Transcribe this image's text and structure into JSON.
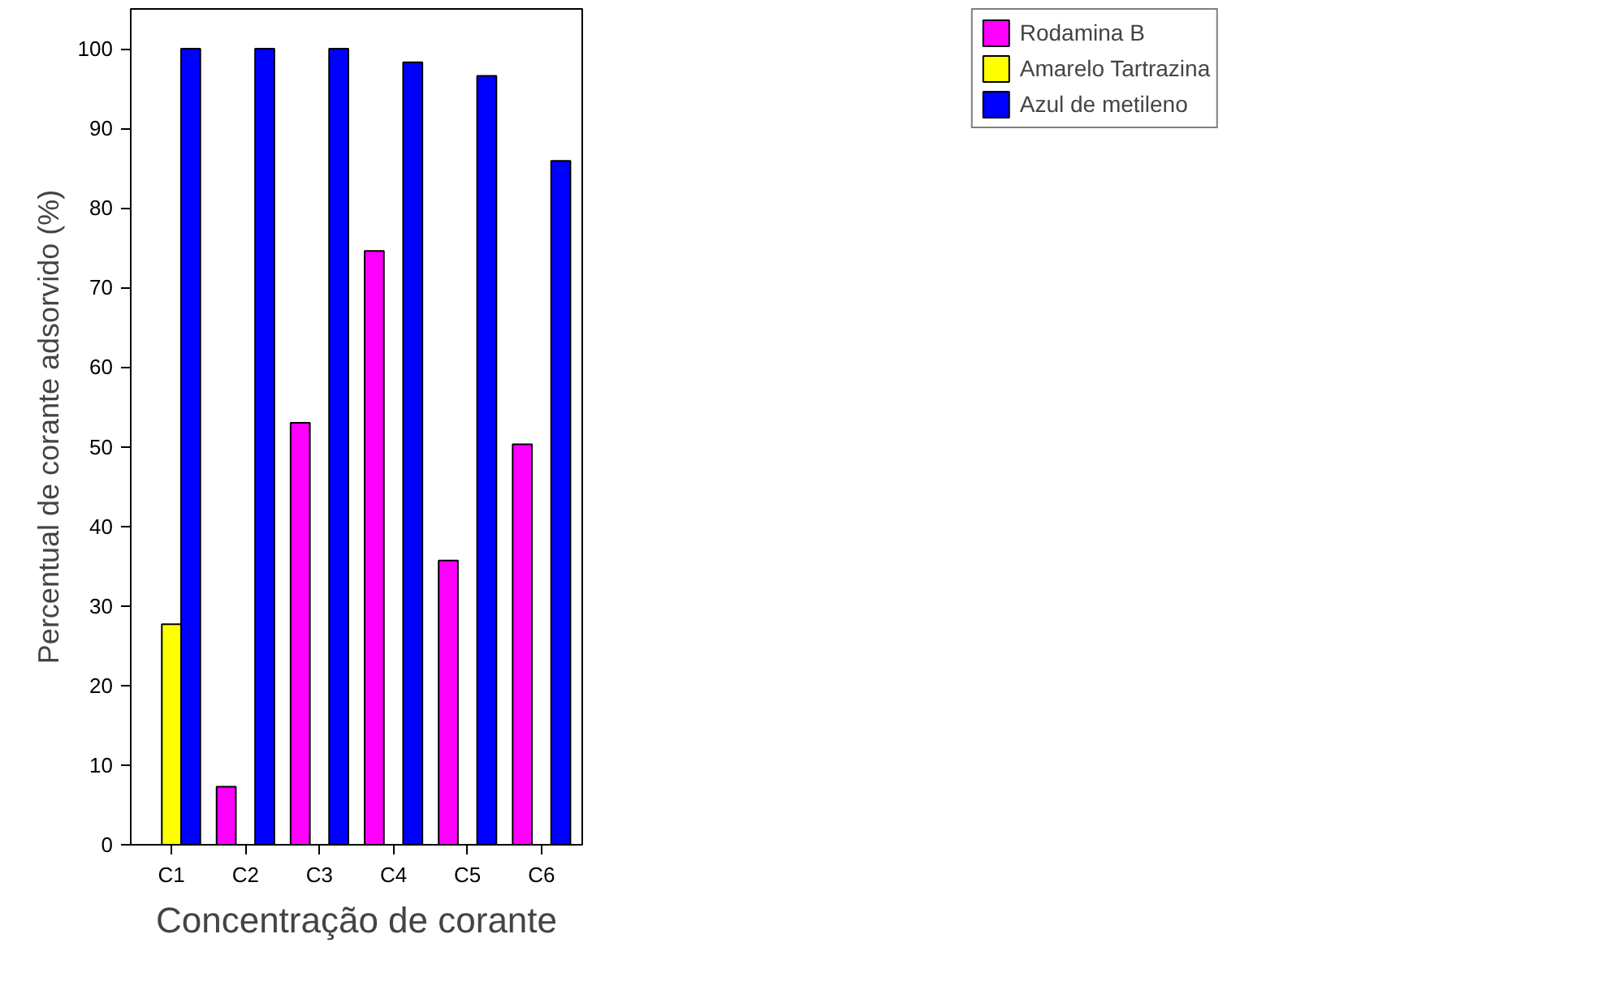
{
  "chart_data": {
    "type": "bar",
    "xlabel": "Concentração de corante",
    "ylabel": "Percentual de corante adsorvido (%)",
    "categories": [
      "C1",
      "C2",
      "C3",
      "C4",
      "C5",
      "C6"
    ],
    "series": [
      {
        "name": "Rodamina B",
        "color": "#ff00ff",
        "values": [
          null,
          7.3,
          53.0,
          74.6,
          35.7,
          50.3
        ]
      },
      {
        "name": "Amarelo Tartrazina",
        "color": "#ffff00",
        "values": [
          27.7,
          null,
          null,
          null,
          null,
          null
        ]
      },
      {
        "name": "Azul de metileno",
        "color": "#0000ff",
        "values": [
          100,
          100,
          100,
          98.3,
          96.6,
          85.9
        ]
      }
    ],
    "ylim": [
      0,
      105
    ],
    "yticks": [
      0,
      10,
      20,
      30,
      40,
      50,
      60,
      70,
      80,
      90,
      100
    ],
    "grid": false,
    "legend": "top right"
  }
}
